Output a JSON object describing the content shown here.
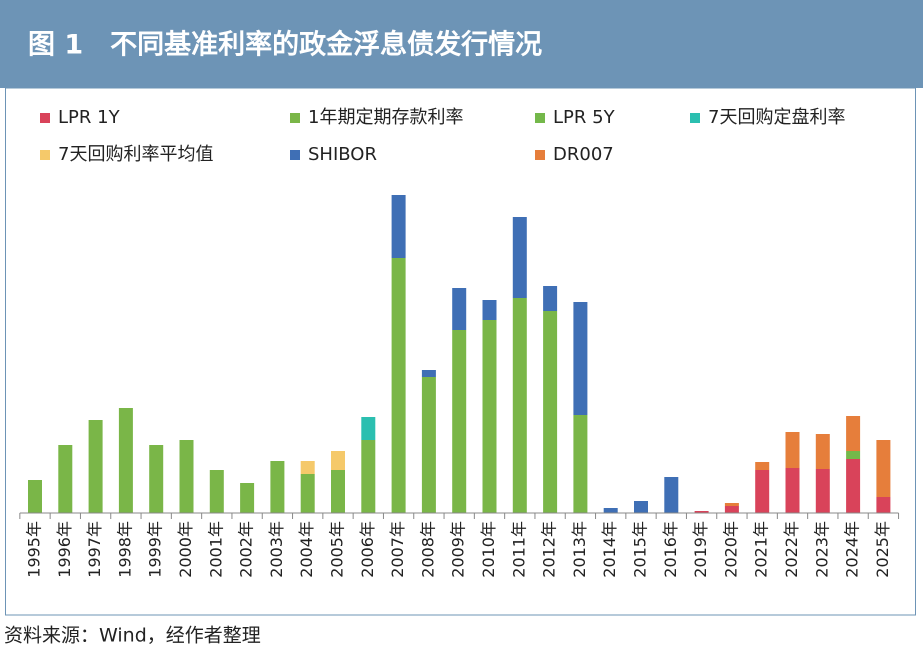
{
  "chart_data": {
    "type": "bar",
    "stacked": true,
    "title": "图 1　不同基准利率的政金浮息债发行情况",
    "source": "资料来源：Wind，经作者整理",
    "categories": [
      "1995年",
      "1996年",
      "1997年",
      "1998年",
      "1999年",
      "2000年",
      "2001年",
      "2002年",
      "2003年",
      "2004年",
      "2005年",
      "2006年",
      "2007年",
      "2008年",
      "2009年",
      "2010年",
      "2011年",
      "2012年",
      "2013年",
      "2014年",
      "2015年",
      "2016年",
      "2019年",
      "2020年",
      "2021年",
      "2022年",
      "2023年",
      "2024年",
      "2025年"
    ],
    "series": [
      {
        "name": "LPR 1Y",
        "color": "#d9435a",
        "values": [
          null,
          null,
          null,
          null,
          null,
          null,
          null,
          null,
          null,
          null,
          null,
          null,
          null,
          null,
          null,
          null,
          null,
          null,
          null,
          null,
          null,
          null,
          2,
          7,
          43,
          45,
          44,
          54,
          16
        ]
      },
      {
        "name": "1年期定期存款利率",
        "color": "#7ab648",
        "values": [
          33,
          68,
          93,
          105,
          68,
          73,
          43,
          30,
          52,
          39,
          43,
          73,
          255,
          136,
          183,
          193,
          215,
          202,
          98,
          null,
          null,
          null,
          null,
          null,
          null,
          null,
          null,
          null,
          null
        ]
      },
      {
        "name": "LPR 5Y",
        "color": "#74b84a",
        "values": [
          null,
          null,
          null,
          null,
          null,
          null,
          null,
          null,
          null,
          null,
          null,
          null,
          null,
          null,
          null,
          null,
          null,
          null,
          null,
          null,
          null,
          null,
          null,
          null,
          null,
          null,
          null,
          8,
          null
        ]
      },
      {
        "name": "7天回购定盘利率",
        "color": "#2bbfb0",
        "values": [
          null,
          null,
          null,
          null,
          null,
          null,
          null,
          null,
          null,
          null,
          null,
          23,
          null,
          null,
          null,
          null,
          null,
          null,
          null,
          null,
          null,
          null,
          null,
          null,
          null,
          null,
          null,
          null,
          null
        ]
      },
      {
        "name": "7天回购利率平均值",
        "color": "#f5c96a",
        "values": [
          null,
          null,
          null,
          null,
          null,
          null,
          null,
          null,
          null,
          13,
          19,
          null,
          null,
          null,
          null,
          null,
          null,
          null,
          null,
          null,
          null,
          null,
          null,
          null,
          null,
          null,
          null,
          null,
          null
        ]
      },
      {
        "name": "SHIBOR",
        "color": "#3f6fb5",
        "values": [
          null,
          null,
          null,
          null,
          null,
          null,
          null,
          null,
          null,
          null,
          null,
          null,
          63,
          7,
          42,
          20,
          81,
          25,
          113,
          5,
          12,
          36,
          null,
          null,
          null,
          null,
          null,
          null,
          null
        ]
      },
      {
        "name": "DR007",
        "color": "#e67e3b",
        "values": [
          null,
          null,
          null,
          null,
          null,
          null,
          null,
          null,
          null,
          null,
          null,
          null,
          null,
          null,
          null,
          null,
          null,
          null,
          null,
          null,
          null,
          null,
          null,
          3,
          8,
          36,
          35,
          35,
          57
        ]
      }
    ]
  }
}
